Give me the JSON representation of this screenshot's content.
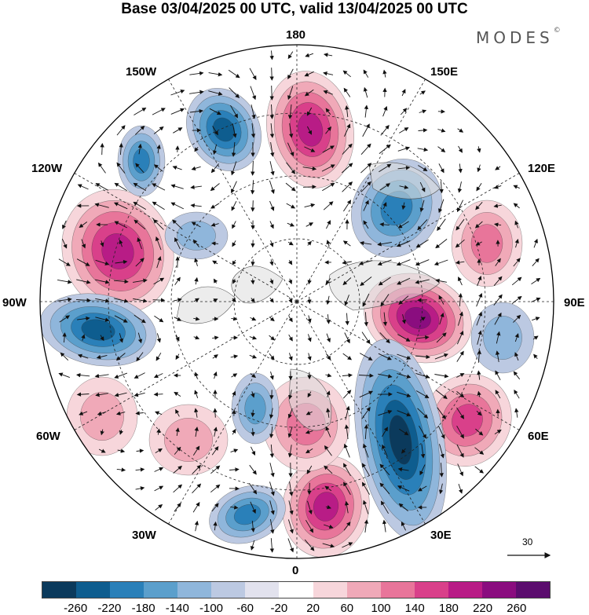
{
  "title": "Base 03/04/2025 00 UTC, valid 13/04/2025 00 UTC",
  "brand": "MODES",
  "brand_mark": "©",
  "longitude_labels": [
    "180",
    "150E",
    "120E",
    "90E",
    "60E",
    "30E",
    "0",
    "30W",
    "60W",
    "90W",
    "120W",
    "150W"
  ],
  "vector_scale_label": "30",
  "colorbar": {
    "ticks": [
      "-260",
      "-220",
      "-180",
      "-140",
      "-100",
      "-60",
      "-20",
      "20",
      "60",
      "100",
      "140",
      "180",
      "220",
      "260"
    ],
    "colors": [
      "#0b3a5c",
      "#0e5d8f",
      "#2a80b9",
      "#5b9fcc",
      "#8fb6db",
      "#bcc9e2",
      "#e2e2ee",
      "#ffffff",
      "#f7d6db",
      "#f0a9b8",
      "#e8759a",
      "#d9408a",
      "#b81c86",
      "#8a0d7f",
      "#5b0d6e"
    ]
  },
  "map_data": {
    "projection": "north-polar-stereographic",
    "anomaly_centers": [
      {
        "sign": "positive",
        "level": 180,
        "region": "central Pacific near 180"
      },
      {
        "sign": "positive",
        "level": 180,
        "region": "western North America, 120W"
      },
      {
        "sign": "positive",
        "level": 220,
        "region": "central Siberia, 90E"
      },
      {
        "sign": "positive",
        "level": 180,
        "region": "British Isles / North Sea, 0"
      },
      {
        "sign": "positive",
        "level": 140,
        "region": "central Asia, 60E"
      },
      {
        "sign": "negative",
        "level": -180,
        "region": "Gulf of Alaska, 150W"
      },
      {
        "sign": "negative",
        "level": -140,
        "region": "Bering Sea / eastern Siberia, 150E"
      },
      {
        "sign": "negative",
        "level": -180,
        "region": "Hudson Bay, 90W"
      },
      {
        "sign": "negative",
        "level": -220,
        "region": "Scandinavia / western Russia, 30E"
      },
      {
        "sign": "negative",
        "level": -140,
        "region": "North Atlantic, 30W"
      }
    ]
  }
}
